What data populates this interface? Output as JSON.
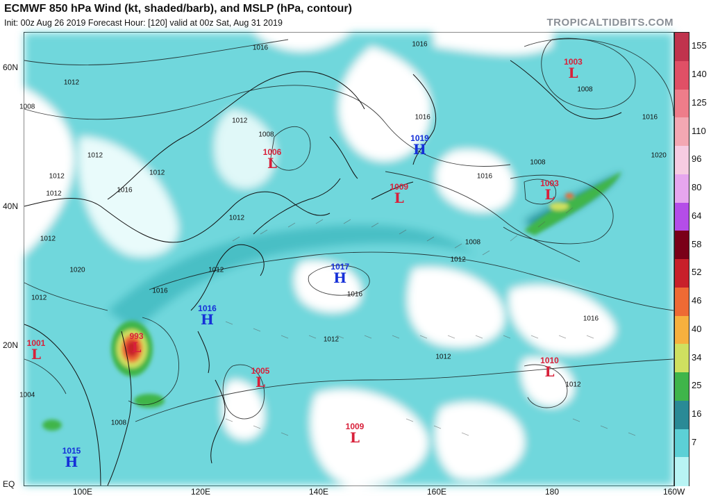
{
  "header": {
    "title": "ECMWF 850 hPa Wind (kt, shaded/barb), and MSLP (hPa, contour)",
    "subtitle": "Init: 00z Aug 26 2019   Forecast Hour: [120]   valid at 00z Sat, Aug 31 2019",
    "brand": "TROPICALTIDBITS.COM"
  },
  "axes": {
    "lon_labels": [
      "100E",
      "120E",
      "140E",
      "160E",
      "180",
      "160W"
    ],
    "lat_labels": [
      "60N",
      "40N",
      "20N",
      "EQ"
    ]
  },
  "colorbar": {
    "ticks": [
      "155",
      "140",
      "125",
      "110",
      "96",
      "80",
      "64",
      "58",
      "52",
      "46",
      "40",
      "34",
      "25",
      "16",
      "7"
    ],
    "colors": [
      "#c0334d",
      "#e05066",
      "#ee7d8a",
      "#f3a8b3",
      "#f6cce2",
      "#e6a6ee",
      "#b44de8",
      "#7a0018",
      "#c8202a",
      "#ee6a34",
      "#f6b03e",
      "#cfe060",
      "#3fb54a",
      "#2a8a96",
      "#5cd0d6",
      "#b8f4f4"
    ]
  },
  "pressure_centers": [
    {
      "type": "L",
      "value": "1003",
      "lon": 183,
      "lat": 60
    },
    {
      "type": "H",
      "value": "1019",
      "lon": 157,
      "lat": 49
    },
    {
      "type": "L",
      "value": "1006",
      "lon": 132,
      "lat": 47
    },
    {
      "type": "L",
      "value": "1003",
      "lon": 179,
      "lat": 42.5
    },
    {
      "type": "L",
      "value": "1009",
      "lon": 153.5,
      "lat": 42
    },
    {
      "type": "H",
      "value": "1017",
      "lon": 143.5,
      "lat": 30.5
    },
    {
      "type": "H",
      "value": "1016",
      "lon": 121,
      "lat": 24.5
    },
    {
      "type": "L",
      "value": "993",
      "lon": 109,
      "lat": 20.5
    },
    {
      "type": "L",
      "value": "1001",
      "lon": 92,
      "lat": 19.5
    },
    {
      "type": "L",
      "value": "1005",
      "lon": 130,
      "lat": 15.5
    },
    {
      "type": "L",
      "value": "1010",
      "lon": 179,
      "lat": 17
    },
    {
      "type": "L",
      "value": "1009",
      "lon": 146,
      "lat": 7.5
    },
    {
      "type": "H",
      "value": "1015",
      "lon": 98,
      "lat": 4
    }
  ],
  "isobar_labels": [
    {
      "text": "1016",
      "lon": 130,
      "lat": 63
    },
    {
      "text": "1016",
      "lon": 157,
      "lat": 63.5
    },
    {
      "text": "1012",
      "lon": 98,
      "lat": 58
    },
    {
      "text": "1008",
      "lon": 90.5,
      "lat": 54.5
    },
    {
      "text": "1012",
      "lon": 126.5,
      "lat": 52.5
    },
    {
      "text": "1008",
      "lon": 131,
      "lat": 50.5
    },
    {
      "text": "1016",
      "lon": 157.5,
      "lat": 53
    },
    {
      "text": "1012",
      "lon": 112.5,
      "lat": 45
    },
    {
      "text": "1012",
      "lon": 95.5,
      "lat": 44.5
    },
    {
      "text": "1012",
      "lon": 102,
      "lat": 47.5
    },
    {
      "text": "1012",
      "lon": 95,
      "lat": 42
    },
    {
      "text": "1016",
      "lon": 107,
      "lat": 42.5
    },
    {
      "text": "1012",
      "lon": 126,
      "lat": 38.5
    },
    {
      "text": "1012",
      "lon": 94,
      "lat": 35.5
    },
    {
      "text": "1020",
      "lon": 99,
      "lat": 31
    },
    {
      "text": "1016",
      "lon": 168,
      "lat": 44.5
    },
    {
      "text": "1008",
      "lon": 177,
      "lat": 46.5
    },
    {
      "text": "1008",
      "lon": 185,
      "lat": 57
    },
    {
      "text": "1016",
      "lon": 196,
      "lat": 53
    },
    {
      "text": "1020",
      "lon": 197.5,
      "lat": 47.5
    },
    {
      "text": "1008",
      "lon": 166,
      "lat": 35
    },
    {
      "text": "1012",
      "lon": 163.5,
      "lat": 32.5
    },
    {
      "text": "1012",
      "lon": 122.5,
      "lat": 31
    },
    {
      "text": "1016",
      "lon": 146,
      "lat": 27.5
    },
    {
      "text": "1016",
      "lon": 113,
      "lat": 28
    },
    {
      "text": "1012",
      "lon": 92.5,
      "lat": 27
    },
    {
      "text": "1016",
      "lon": 186,
      "lat": 24
    },
    {
      "text": "1012",
      "lon": 142,
      "lat": 21
    },
    {
      "text": "1012",
      "lon": 161,
      "lat": 18.5
    },
    {
      "text": "1012",
      "lon": 183,
      "lat": 14.5
    },
    {
      "text": "1008",
      "lon": 106,
      "lat": 9
    },
    {
      "text": "1004",
      "lon": 90.5,
      "lat": 13
    }
  ]
}
